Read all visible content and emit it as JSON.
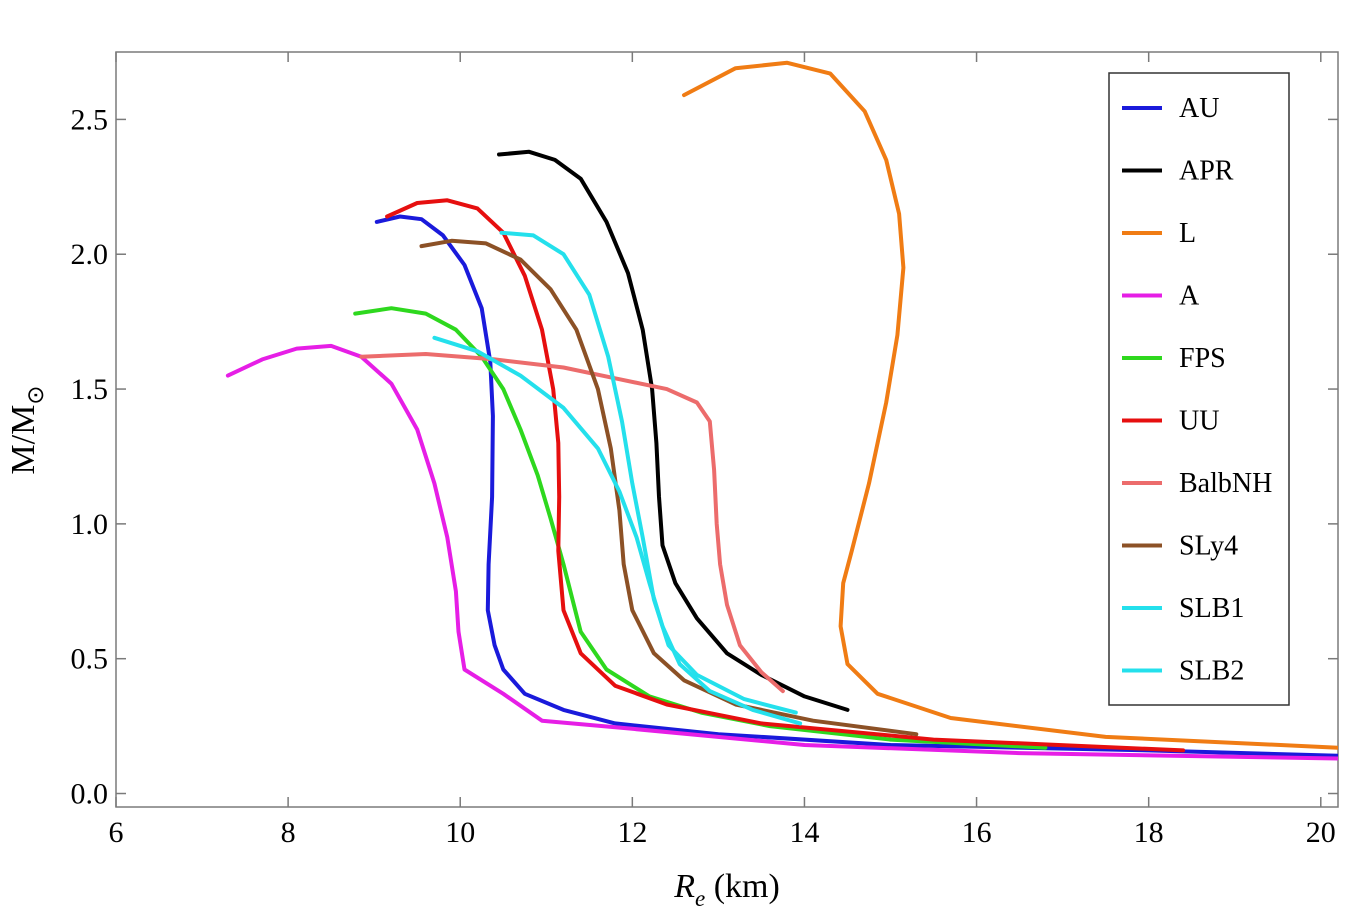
{
  "chart_data": {
    "type": "line",
    "title": "",
    "xlabel_main": "R",
    "xlabel_sub": "e",
    "xlabel_unit": " (km)",
    "ylabel_main": "M/M",
    "ylabel_sub": "⊙",
    "xlim": [
      6,
      20.2
    ],
    "ylim": [
      -0.05,
      2.75
    ],
    "xticks": [
      6,
      8,
      10,
      12,
      14,
      16,
      18,
      20
    ],
    "yticks": [
      0.0,
      0.5,
      1.0,
      1.5,
      2.0,
      2.5
    ],
    "xtick_labels": [
      "6",
      "8",
      "10",
      "12",
      "14",
      "16",
      "18",
      "20"
    ],
    "ytick_labels": [
      "0.0",
      "0.5",
      "1.0",
      "1.5",
      "2.0",
      "2.5"
    ],
    "grid": false,
    "legend_position": "top-right",
    "series": [
      {
        "name": "AU",
        "color": "#1a1adb",
        "points": [
          [
            9.03,
            2.12
          ],
          [
            9.3,
            2.14
          ],
          [
            9.55,
            2.13
          ],
          [
            9.8,
            2.07
          ],
          [
            10.05,
            1.96
          ],
          [
            10.25,
            1.8
          ],
          [
            10.35,
            1.6
          ],
          [
            10.38,
            1.4
          ],
          [
            10.37,
            1.1
          ],
          [
            10.33,
            0.85
          ],
          [
            10.32,
            0.68
          ],
          [
            10.4,
            0.55
          ],
          [
            10.5,
            0.46
          ],
          [
            10.75,
            0.37
          ],
          [
            11.2,
            0.31
          ],
          [
            11.8,
            0.26
          ],
          [
            13.0,
            0.22
          ],
          [
            15.0,
            0.18
          ],
          [
            18.0,
            0.16
          ],
          [
            20.2,
            0.14
          ]
        ]
      },
      {
        "name": "APR",
        "color": "#000000",
        "points": [
          [
            10.45,
            2.37
          ],
          [
            10.8,
            2.38
          ],
          [
            11.1,
            2.35
          ],
          [
            11.4,
            2.28
          ],
          [
            11.7,
            2.12
          ],
          [
            11.95,
            1.93
          ],
          [
            12.12,
            1.72
          ],
          [
            12.23,
            1.5
          ],
          [
            12.28,
            1.3
          ],
          [
            12.31,
            1.1
          ],
          [
            12.35,
            0.92
          ],
          [
            12.5,
            0.78
          ],
          [
            12.75,
            0.65
          ],
          [
            13.1,
            0.52
          ],
          [
            13.5,
            0.44
          ],
          [
            14.0,
            0.36
          ],
          [
            14.5,
            0.31
          ]
        ]
      },
      {
        "name": "L",
        "color": "#f07c14",
        "points": [
          [
            12.6,
            2.59
          ],
          [
            13.2,
            2.69
          ],
          [
            13.8,
            2.71
          ],
          [
            14.3,
            2.67
          ],
          [
            14.7,
            2.53
          ],
          [
            14.95,
            2.35
          ],
          [
            15.1,
            2.15
          ],
          [
            15.15,
            1.95
          ],
          [
            15.08,
            1.7
          ],
          [
            14.95,
            1.45
          ],
          [
            14.75,
            1.15
          ],
          [
            14.55,
            0.9
          ],
          [
            14.45,
            0.78
          ],
          [
            14.42,
            0.62
          ],
          [
            14.5,
            0.48
          ],
          [
            14.85,
            0.37
          ],
          [
            15.7,
            0.28
          ],
          [
            17.5,
            0.21
          ],
          [
            20.2,
            0.17
          ]
        ]
      },
      {
        "name": "A",
        "color": "#e61ee6",
        "points": [
          [
            7.3,
            1.55
          ],
          [
            7.7,
            1.61
          ],
          [
            8.1,
            1.65
          ],
          [
            8.5,
            1.66
          ],
          [
            8.85,
            1.62
          ],
          [
            9.2,
            1.52
          ],
          [
            9.5,
            1.35
          ],
          [
            9.7,
            1.15
          ],
          [
            9.85,
            0.95
          ],
          [
            9.95,
            0.75
          ],
          [
            9.98,
            0.6
          ],
          [
            10.05,
            0.46
          ],
          [
            10.5,
            0.37
          ],
          [
            10.95,
            0.27
          ],
          [
            12.0,
            0.24
          ],
          [
            14.0,
            0.18
          ],
          [
            16.5,
            0.15
          ],
          [
            20.2,
            0.13
          ]
        ]
      },
      {
        "name": "FPS",
        "color": "#2ed81e",
        "points": [
          [
            8.78,
            1.78
          ],
          [
            9.2,
            1.8
          ],
          [
            9.6,
            1.78
          ],
          [
            9.95,
            1.72
          ],
          [
            10.25,
            1.62
          ],
          [
            10.5,
            1.5
          ],
          [
            10.7,
            1.35
          ],
          [
            10.9,
            1.18
          ],
          [
            11.05,
            1.02
          ],
          [
            11.2,
            0.85
          ],
          [
            11.4,
            0.6
          ],
          [
            11.7,
            0.46
          ],
          [
            12.2,
            0.36
          ],
          [
            12.8,
            0.3
          ],
          [
            13.6,
            0.25
          ],
          [
            15.0,
            0.2
          ],
          [
            16.8,
            0.17
          ]
        ]
      },
      {
        "name": "UU",
        "color": "#e60f0f",
        "points": [
          [
            9.15,
            2.14
          ],
          [
            9.5,
            2.19
          ],
          [
            9.85,
            2.2
          ],
          [
            10.2,
            2.17
          ],
          [
            10.5,
            2.08
          ],
          [
            10.75,
            1.92
          ],
          [
            10.95,
            1.72
          ],
          [
            11.08,
            1.5
          ],
          [
            11.14,
            1.3
          ],
          [
            11.15,
            1.1
          ],
          [
            11.14,
            0.9
          ],
          [
            11.2,
            0.68
          ],
          [
            11.4,
            0.52
          ],
          [
            11.8,
            0.4
          ],
          [
            12.4,
            0.33
          ],
          [
            13.5,
            0.26
          ],
          [
            15.5,
            0.2
          ],
          [
            18.4,
            0.16
          ]
        ]
      },
      {
        "name": "BalbNH",
        "color": "#ec6c6c",
        "points": [
          [
            8.85,
            1.62
          ],
          [
            9.6,
            1.63
          ],
          [
            10.4,
            1.61
          ],
          [
            11.2,
            1.58
          ],
          [
            11.8,
            1.54
          ],
          [
            12.4,
            1.5
          ],
          [
            12.75,
            1.45
          ],
          [
            12.9,
            1.38
          ],
          [
            12.95,
            1.2
          ],
          [
            12.98,
            1.0
          ],
          [
            13.02,
            0.85
          ],
          [
            13.1,
            0.7
          ],
          [
            13.25,
            0.55
          ],
          [
            13.5,
            0.45
          ],
          [
            13.75,
            0.38
          ]
        ]
      },
      {
        "name": "SLy4",
        "color": "#8c5126",
        "points": [
          [
            9.55,
            2.03
          ],
          [
            9.9,
            2.05
          ],
          [
            10.3,
            2.04
          ],
          [
            10.7,
            1.98
          ],
          [
            11.05,
            1.87
          ],
          [
            11.35,
            1.72
          ],
          [
            11.6,
            1.5
          ],
          [
            11.75,
            1.28
          ],
          [
            11.85,
            1.05
          ],
          [
            11.9,
            0.85
          ],
          [
            12.0,
            0.68
          ],
          [
            12.25,
            0.52
          ],
          [
            12.6,
            0.42
          ],
          [
            13.2,
            0.33
          ],
          [
            14.1,
            0.27
          ],
          [
            15.3,
            0.22
          ]
        ]
      },
      {
        "name": "SLB1",
        "color": "#24e0ec",
        "points": [
          [
            10.48,
            2.08
          ],
          [
            10.85,
            2.07
          ],
          [
            11.2,
            2.0
          ],
          [
            11.5,
            1.85
          ],
          [
            11.72,
            1.62
          ],
          [
            11.88,
            1.38
          ],
          [
            12.0,
            1.15
          ],
          [
            12.12,
            0.95
          ],
          [
            12.25,
            0.72
          ],
          [
            12.42,
            0.55
          ],
          [
            12.75,
            0.44
          ],
          [
            13.3,
            0.35
          ],
          [
            13.9,
            0.3
          ]
        ]
      },
      {
        "name": "SLB2",
        "color": "#24e0ec",
        "points": [
          [
            9.7,
            1.69
          ],
          [
            10.2,
            1.64
          ],
          [
            10.7,
            1.55
          ],
          [
            11.2,
            1.43
          ],
          [
            11.6,
            1.28
          ],
          [
            11.85,
            1.12
          ],
          [
            12.05,
            0.95
          ],
          [
            12.2,
            0.78
          ],
          [
            12.35,
            0.62
          ],
          [
            12.55,
            0.48
          ],
          [
            12.9,
            0.38
          ],
          [
            13.4,
            0.31
          ],
          [
            13.95,
            0.26
          ]
        ]
      }
    ]
  }
}
